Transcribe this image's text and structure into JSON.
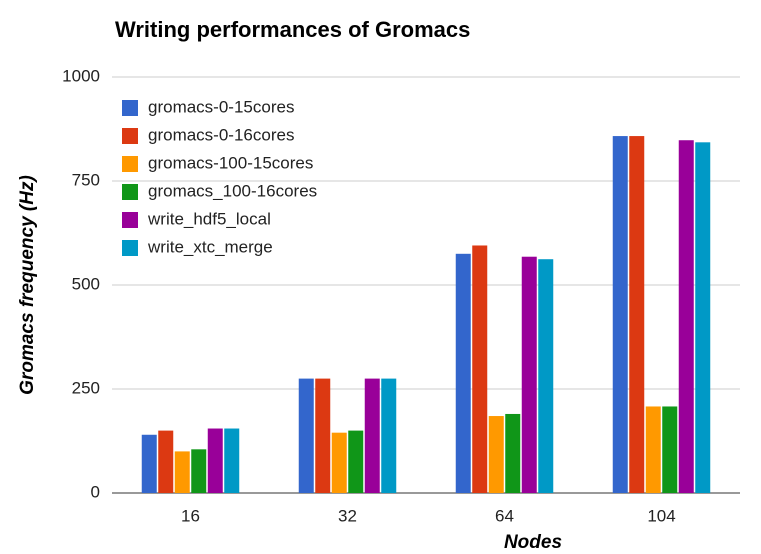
{
  "chart_data": {
    "type": "bar",
    "title": "Writing performances of Gromacs",
    "x_label": "Nodes",
    "y_label": "Gromacs frequency (Hz)",
    "categories": [
      "16",
      "32",
      "64",
      "104"
    ],
    "series": [
      {
        "name": "gromacs-0-15cores",
        "color": "#3366cc",
        "values": [
          140,
          275,
          575,
          858
        ]
      },
      {
        "name": "gromacs-0-16cores",
        "color": "#dc3912",
        "values": [
          150,
          275,
          595,
          858
        ]
      },
      {
        "name": "gromacs-100-15cores",
        "color": "#ff9900",
        "values": [
          100,
          145,
          185,
          208
        ]
      },
      {
        "name": "gromacs_100-16cores",
        "color": "#109618",
        "values": [
          105,
          150,
          190,
          208
        ]
      },
      {
        "name": "write_hdf5_local",
        "color": "#990099",
        "values": [
          155,
          275,
          568,
          848
        ]
      },
      {
        "name": "write_xtc_merge",
        "color": "#0099c6",
        "values": [
          155,
          275,
          562,
          843
        ]
      }
    ],
    "ylim": [
      0,
      1000
    ],
    "yticks": [
      0,
      250,
      500,
      750,
      1000
    ],
    "grid": true,
    "legend": "top-left"
  }
}
